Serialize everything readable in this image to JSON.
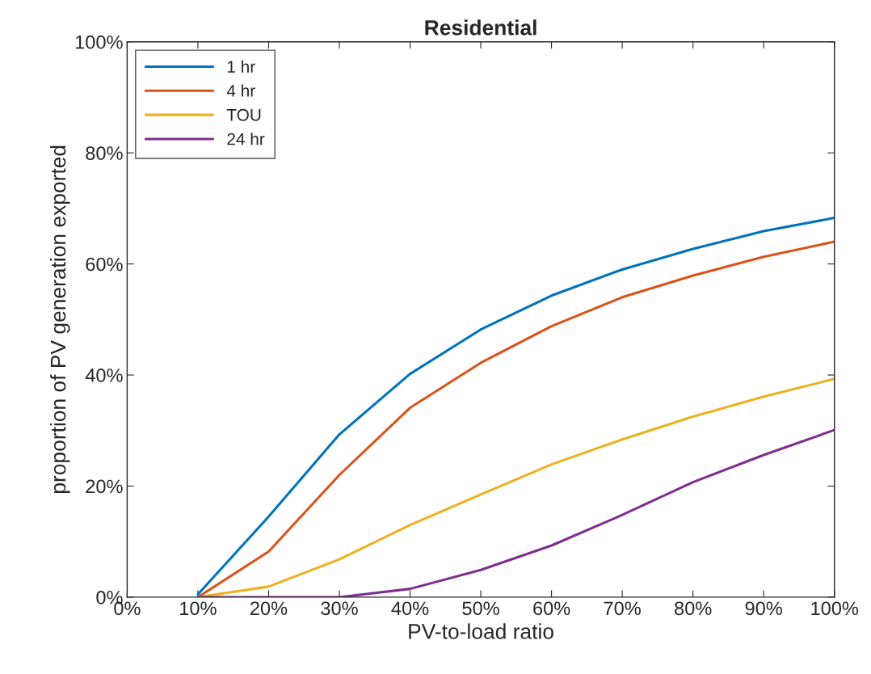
{
  "chart_data": {
    "type": "line",
    "title": "Residential",
    "xlabel": "PV-to-load ratio",
    "ylabel": "proportion of PV generation exported",
    "x": [
      10,
      20,
      30,
      40,
      50,
      60,
      70,
      80,
      90,
      100
    ],
    "series": [
      {
        "name": "1 hr",
        "color": "#0072bd",
        "values": [
          0.5,
          14.5,
          29.3,
          40.2,
          48.2,
          54.3,
          59,
          62.7,
          65.9,
          68.3
        ]
      },
      {
        "name": "4 hr",
        "color": "#d95319",
        "values": [
          0,
          8.2,
          22,
          34.1,
          42.2,
          48.8,
          54,
          57.9,
          61.3,
          64
        ]
      },
      {
        "name": "TOU",
        "color": "#edb120",
        "values": [
          0,
          1.9,
          6.8,
          13,
          18.5,
          23.9,
          28.4,
          32.5,
          36.1,
          39.3
        ]
      },
      {
        "name": "24 hr",
        "color": "#7e2f8e",
        "values": [
          0,
          0,
          0,
          1.5,
          4.9,
          9.3,
          14.8,
          20.7,
          25.6,
          30.1
        ]
      }
    ],
    "xlim": [
      0,
      100
    ],
    "ylim": [
      0,
      100
    ],
    "xticks": [
      {
        "value": 0,
        "label": "0%"
      },
      {
        "value": 10,
        "label": "10%"
      },
      {
        "value": 20,
        "label": "20%"
      },
      {
        "value": 30,
        "label": "30%"
      },
      {
        "value": 40,
        "label": "40%"
      },
      {
        "value": 50,
        "label": "50%"
      },
      {
        "value": 60,
        "label": "60%"
      },
      {
        "value": 70,
        "label": "70%"
      },
      {
        "value": 80,
        "label": "80%"
      },
      {
        "value": 90,
        "label": "90%"
      },
      {
        "value": 100,
        "label": "100%"
      }
    ],
    "yticks": [
      {
        "value": 0,
        "label": "0%"
      },
      {
        "value": 20,
        "label": "20%"
      },
      {
        "value": 40,
        "label": "40%"
      },
      {
        "value": 60,
        "label": "60%"
      },
      {
        "value": 80,
        "label": "80%"
      },
      {
        "value": 100,
        "label": "100%"
      }
    ],
    "grid": false,
    "legend": "top left",
    "marker": "none",
    "line_style": "solid"
  }
}
